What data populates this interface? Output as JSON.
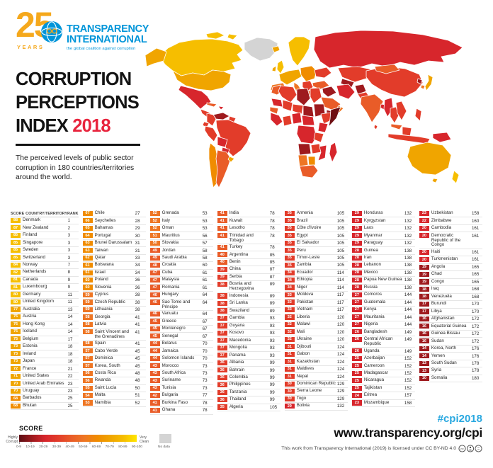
{
  "header": {
    "logo": {
      "years_number": "25",
      "years_label": "YEARS",
      "brand_line1": "TRANSPARENCY",
      "brand_line2": "INTERNATIONAL",
      "tagline": "the global coalition against corruption"
    },
    "title_line1": "CORRUPTION",
    "title_line2": "PERCEPTIONS",
    "title_line3": "INDEX",
    "title_year": "2018",
    "subtitle": "The perceived levels of public sector corruption in 180 countries/territories around the world."
  },
  "table": {
    "headers": {
      "score": "SCORE",
      "country": "COUNTRY/TERRITORY",
      "rank": "RANK"
    },
    "columns": [
      [
        [
          88,
          "Denmark",
          1
        ],
        [
          87,
          "New Zealand",
          2
        ],
        [
          85,
          "Finland",
          3
        ],
        [
          85,
          "Singapore",
          3
        ],
        [
          85,
          "Sweden",
          3
        ],
        [
          85,
          "Switzerland",
          3
        ],
        [
          84,
          "Norway",
          7
        ],
        [
          82,
          "Netherlands",
          8
        ],
        [
          81,
          "Canada",
          9
        ],
        [
          81,
          "Luxembourg",
          9
        ],
        [
          80,
          "Germany",
          11
        ],
        [
          80,
          "United Kingdom",
          11
        ],
        [
          77,
          "Australia",
          13
        ],
        [
          76,
          "Austria",
          14
        ],
        [
          76,
          "Hong Kong",
          14
        ],
        [
          76,
          "Iceland",
          14
        ],
        [
          75,
          "Belgium",
          17
        ],
        [
          73,
          "Estonia",
          18
        ],
        [
          73,
          "Ireland",
          18
        ],
        [
          73,
          "Japan",
          18
        ],
        [
          72,
          "France",
          21
        ],
        [
          71,
          "United States",
          22
        ],
        [
          70,
          "United Arab Emirates",
          23
        ],
        [
          70,
          "Uruguay",
          23
        ],
        [
          68,
          "Barbados",
          25
        ],
        [
          68,
          "Bhutan",
          25
        ]
      ],
      [
        [
          67,
          "Chile",
          27
        ],
        [
          66,
          "Seychelles",
          28
        ],
        [
          65,
          "Bahamas",
          29
        ],
        [
          64,
          "Portugal",
          30
        ],
        [
          63,
          "Brunei Darussalam",
          31
        ],
        [
          63,
          "Taiwan",
          31
        ],
        [
          62,
          "Qatar",
          33
        ],
        [
          61,
          "Botswana",
          34
        ],
        [
          61,
          "Israel",
          34
        ],
        [
          60,
          "Poland",
          36
        ],
        [
          60,
          "Slovenia",
          36
        ],
        [
          59,
          "Cyprus",
          38
        ],
        [
          59,
          "Czech Republic",
          38
        ],
        [
          59,
          "Lithuania",
          38
        ],
        [
          58,
          "Georgia",
          41
        ],
        [
          58,
          "Latvia",
          41
        ],
        [
          58,
          "Saint Vincent and the Grenadines",
          41
        ],
        [
          58,
          "Spain",
          41
        ],
        [
          57,
          "Cabo Verde",
          45
        ],
        [
          57,
          "Dominica",
          45
        ],
        [
          57,
          "Korea, South",
          45
        ],
        [
          56,
          "Costa Rica",
          48
        ],
        [
          56,
          "Rwanda",
          48
        ],
        [
          55,
          "Saint Lucia",
          50
        ],
        [
          54,
          "Malta",
          51
        ],
        [
          53,
          "Namibia",
          52
        ]
      ],
      [
        [
          52,
          "Grenada",
          53
        ],
        [
          52,
          "Italy",
          53
        ],
        [
          52,
          "Oman",
          53
        ],
        [
          51,
          "Mauritius",
          56
        ],
        [
          50,
          "Slovakia",
          57
        ],
        [
          49,
          "Jordan",
          58
        ],
        [
          49,
          "Saudi Arabia",
          58
        ],
        [
          48,
          "Croatia",
          60
        ],
        [
          47,
          "Cuba",
          61
        ],
        [
          47,
          "Malaysia",
          61
        ],
        [
          47,
          "Romania",
          61
        ],
        [
          46,
          "Hungary",
          64
        ],
        [
          46,
          "Sao Tome and Principe",
          64
        ],
        [
          46,
          "Vanuatu",
          64
        ],
        [
          45,
          "Greece",
          67
        ],
        [
          45,
          "Montenegro",
          67
        ],
        [
          45,
          "Senegal",
          67
        ],
        [
          44,
          "Belarus",
          70
        ],
        [
          44,
          "Jamaica",
          70
        ],
        [
          44,
          "Solomon Islands",
          70
        ],
        [
          43,
          "Morocco",
          73
        ],
        [
          43,
          "South Africa",
          73
        ],
        [
          43,
          "Suriname",
          73
        ],
        [
          43,
          "Tunisia",
          73
        ],
        [
          42,
          "Bulgaria",
          77
        ],
        [
          41,
          "Burkina Faso",
          78
        ],
        [
          41,
          "Ghana",
          78
        ]
      ],
      [
        [
          41,
          "India",
          78
        ],
        [
          41,
          "Kuwait",
          78
        ],
        [
          41,
          "Lesotho",
          78
        ],
        [
          41,
          "Trinidad and Tobago",
          78
        ],
        [
          41,
          "Turkey",
          78
        ],
        [
          40,
          "Argentina",
          85
        ],
        [
          40,
          "Benin",
          85
        ],
        [
          39,
          "China",
          87
        ],
        [
          39,
          "Serbia",
          87
        ],
        [
          38,
          "Bosnia and Herzegovina",
          89
        ],
        [
          38,
          "Indonesia",
          89
        ],
        [
          38,
          "Sri Lanka",
          89
        ],
        [
          38,
          "Swaziland",
          89
        ],
        [
          37,
          "Gambia",
          93
        ],
        [
          37,
          "Guyana",
          93
        ],
        [
          37,
          "Kosovo",
          93
        ],
        [
          37,
          "Macedonia",
          93
        ],
        [
          37,
          "Mongolia",
          93
        ],
        [
          37,
          "Panama",
          93
        ],
        [
          36,
          "Albania",
          99
        ],
        [
          36,
          "Bahrain",
          99
        ],
        [
          36,
          "Colombia",
          99
        ],
        [
          36,
          "Philippines",
          99
        ],
        [
          36,
          "Tanzania",
          99
        ],
        [
          36,
          "Thailand",
          99
        ],
        [
          35,
          "Algeria",
          105
        ]
      ],
      [
        [
          35,
          "Armenia",
          105
        ],
        [
          35,
          "Brazil",
          105
        ],
        [
          35,
          "Côte d'Ivoire",
          105
        ],
        [
          35,
          "Egypt",
          105
        ],
        [
          35,
          "El Salvador",
          105
        ],
        [
          35,
          "Peru",
          105
        ],
        [
          35,
          "Timor-Leste",
          105
        ],
        [
          35,
          "Zambia",
          105
        ],
        [
          34,
          "Ecuador",
          114
        ],
        [
          34,
          "Ethiopia",
          114
        ],
        [
          34,
          "Niger",
          114
        ],
        [
          33,
          "Moldova",
          117
        ],
        [
          33,
          "Pakistan",
          117
        ],
        [
          33,
          "Vietnam",
          117
        ],
        [
          32,
          "Liberia",
          120
        ],
        [
          32,
          "Malawi",
          120
        ],
        [
          32,
          "Mali",
          120
        ],
        [
          32,
          "Ukraine",
          120
        ],
        [
          31,
          "Djibouti",
          124
        ],
        [
          31,
          "Gabon",
          124
        ],
        [
          31,
          "Kazakhstan",
          124
        ],
        [
          31,
          "Maldives",
          124
        ],
        [
          31,
          "Nepal",
          124
        ],
        [
          30,
          "Dominican Republic",
          129
        ],
        [
          30,
          "Sierra Leone",
          129
        ],
        [
          30,
          "Togo",
          129
        ],
        [
          29,
          "Bolivia",
          132
        ]
      ],
      [
        [
          29,
          "Honduras",
          132
        ],
        [
          29,
          "Kyrgyzstan",
          132
        ],
        [
          29,
          "Laos",
          132
        ],
        [
          29,
          "Myanmar",
          132
        ],
        [
          29,
          "Paraguay",
          132
        ],
        [
          28,
          "Guinea",
          138
        ],
        [
          28,
          "Iran",
          138
        ],
        [
          28,
          "Lebanon",
          138
        ],
        [
          28,
          "Mexico",
          138
        ],
        [
          28,
          "Papua New Guinea",
          138
        ],
        [
          28,
          "Russia",
          138
        ],
        [
          27,
          "Comoros",
          144
        ],
        [
          27,
          "Guatemala",
          144
        ],
        [
          27,
          "Kenya",
          144
        ],
        [
          27,
          "Mauritania",
          144
        ],
        [
          27,
          "Nigeria",
          144
        ],
        [
          26,
          "Bangladesh",
          149
        ],
        [
          26,
          "Central African Republic",
          149
        ],
        [
          26,
          "Uganda",
          149
        ],
        [
          25,
          "Azerbaijan",
          152
        ],
        [
          25,
          "Cameroon",
          152
        ],
        [
          25,
          "Madagascar",
          152
        ],
        [
          25,
          "Nicaragua",
          152
        ],
        [
          25,
          "Tajikistan",
          152
        ],
        [
          24,
          "Eritrea",
          157
        ],
        [
          23,
          "Mozambique",
          158
        ]
      ],
      [
        [
          23,
          "Uzbekistan",
          158
        ],
        [
          22,
          "Zimbabwe",
          160
        ],
        [
          20,
          "Cambodia",
          161
        ],
        [
          20,
          "Democratic Republic of the Congo",
          161
        ],
        [
          20,
          "Haiti",
          161
        ],
        [
          20,
          "Turkmenistan",
          161
        ],
        [
          19,
          "Angola",
          165
        ],
        [
          19,
          "Chad",
          165
        ],
        [
          19,
          "Congo",
          165
        ],
        [
          18,
          "Iraq",
          168
        ],
        [
          18,
          "Venezuela",
          168
        ],
        [
          17,
          "Burundi",
          170
        ],
        [
          17,
          "Libya",
          170
        ],
        [
          16,
          "Afghanistan",
          172
        ],
        [
          16,
          "Equatorial Guinea",
          172
        ],
        [
          16,
          "Guinea Bissau",
          172
        ],
        [
          16,
          "Sudan",
          172
        ],
        [
          14,
          "Korea, North",
          176
        ],
        [
          14,
          "Yemen",
          176
        ],
        [
          13,
          "South Sudan",
          178
        ],
        [
          13,
          "Syria",
          178
        ],
        [
          10,
          "Somalia",
          180
        ]
      ]
    ]
  },
  "legend": {
    "title": "SCORE",
    "left_label": "Highly Corrupt",
    "right_label": "Very Clean",
    "ticks": [
      "0-9",
      "10-19",
      "20-29",
      "30-39",
      "40-49",
      "50-59",
      "60-69",
      "70-79",
      "80-89",
      "90-100"
    ],
    "no_data_label": "No data"
  },
  "footer": {
    "hashtag": "#cpi2018",
    "url": "www.transparency.org/cpi",
    "license": "This work from Transparency International (2019) is licensed under CC BY-ND 4.0"
  },
  "colors": {
    "brand_blue": "#0095D9",
    "logo_gold": "#F5A81C",
    "title_year_red": "#E8243D",
    "hashtag_blue": "#29A8E0",
    "no_data": "#D4D4D4",
    "decades": {
      "0": "#6E0E12",
      "10": "#9E1A1E",
      "20": "#D7262C",
      "30": "#E23C2A",
      "40": "#E95C28",
      "50": "#EE7624",
      "60": "#F08C00",
      "70": "#F0A500",
      "80": "#F6BE00",
      "90": "#FFE600"
    }
  }
}
